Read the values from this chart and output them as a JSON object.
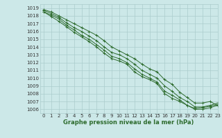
{
  "title": "Graphe pression niveau de la mer (hPa)",
  "background_color": "#cce8e8",
  "grid_color": "#aacccc",
  "line_color": "#2d6b2d",
  "xlim": [
    -0.5,
    23
  ],
  "ylim": [
    1005.5,
    1019.5
  ],
  "yticks": [
    1006,
    1007,
    1008,
    1009,
    1010,
    1011,
    1012,
    1013,
    1014,
    1015,
    1016,
    1017,
    1018,
    1019
  ],
  "xticks": [
    0,
    1,
    2,
    3,
    4,
    5,
    6,
    7,
    8,
    9,
    10,
    11,
    12,
    13,
    14,
    15,
    16,
    17,
    18,
    19,
    20,
    21,
    22,
    23
  ],
  "series": [
    [
      1018.5,
      1018.1,
      1017.6,
      1016.8,
      1016.2,
      1015.5,
      1015.0,
      1014.3,
      1013.6,
      1012.8,
      1012.5,
      1012.0,
      1011.2,
      1010.5,
      1010.0,
      1009.5,
      1008.3,
      1007.8,
      1007.2,
      1006.5,
      1006.0,
      1006.0,
      1006.2,
      1006.5
    ],
    [
      1018.5,
      1017.9,
      1017.3,
      1016.6,
      1015.9,
      1015.3,
      1014.7,
      1014.0,
      1013.2,
      1012.5,
      1012.2,
      1011.8,
      1010.8,
      1010.2,
      1009.8,
      1009.3,
      1008.0,
      1007.4,
      1007.0,
      1006.5,
      1006.1,
      1006.2,
      1006.4,
      1006.6
    ],
    [
      1018.7,
      1018.3,
      1017.8,
      1017.1,
      1016.5,
      1016.0,
      1015.4,
      1014.8,
      1014.0,
      1013.3,
      1013.0,
      1012.5,
      1011.8,
      1011.0,
      1010.5,
      1010.0,
      1009.0,
      1008.3,
      1007.5,
      1007.0,
      1006.3,
      1006.3,
      1006.5,
      1006.8
    ],
    [
      1018.8,
      1018.5,
      1018.0,
      1017.5,
      1017.0,
      1016.5,
      1016.0,
      1015.5,
      1014.8,
      1014.0,
      1013.5,
      1013.0,
      1012.5,
      1011.8,
      1011.2,
      1010.8,
      1009.8,
      1009.2,
      1008.2,
      1007.5,
      1006.8,
      1006.8,
      1007.0,
      1006.5
    ]
  ],
  "tick_fontsize": 5,
  "xlabel_fontsize": 6,
  "marker_size": 2.5,
  "line_width": 0.7
}
